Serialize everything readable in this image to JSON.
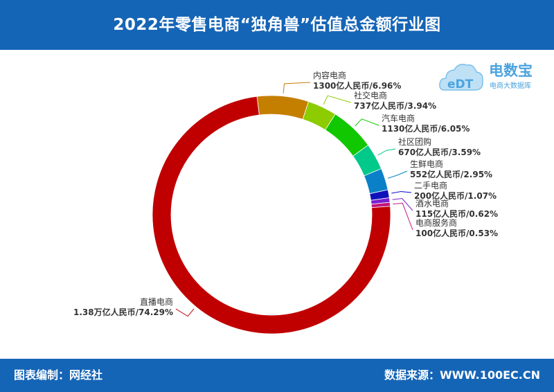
{
  "header": {
    "title": "2022年零售电商“独角兽”估值总金额行业图"
  },
  "logo": {
    "mark": "eDT",
    "name": "电数宝",
    "sub": "电商大数据库"
  },
  "footer": {
    "left": "图表编制：网经社",
    "right": "数据来源：WWW.100EC.CN"
  },
  "chart_data": {
    "type": "pie",
    "donut": true,
    "title": "2022年零售电商“独角兽”估值总金额行业图",
    "slices": [
      {
        "name": "内容电商",
        "value": 1300,
        "display": "1300亿人民币/6.96%",
        "percent": 6.96,
        "color": "#c47f00"
      },
      {
        "name": "社交电商",
        "value": 737,
        "display": "737亿人民币/3.94%",
        "percent": 3.94,
        "color": "#8ccc00"
      },
      {
        "name": "汽车电商",
        "value": 1130,
        "display": "1130亿人民币/6.05%",
        "percent": 6.05,
        "color": "#11c700"
      },
      {
        "name": "社区团购",
        "value": 670,
        "display": "670亿人民币/3.59%",
        "percent": 3.59,
        "color": "#00c98a"
      },
      {
        "name": "生鲜电商",
        "value": 552,
        "display": "552亿人民币/2.95%",
        "percent": 2.95,
        "color": "#0a80c8"
      },
      {
        "name": "二手电商",
        "value": 200,
        "display": "200亿人民币/1.07%",
        "percent": 1.07,
        "color": "#1010bb"
      },
      {
        "name": "酒水电商",
        "value": 115,
        "display": "115亿人民币/0.62%",
        "percent": 0.62,
        "color": "#7a1fcf"
      },
      {
        "name": "电商服务商",
        "value": 100,
        "display": "100亿人民币/0.53%",
        "percent": 0.53,
        "color": "#c4167c"
      },
      {
        "name": "直播电商",
        "value": 13800,
        "display": "1.38万亿人民币/74.29%",
        "percent": 74.29,
        "color": "#c00000"
      }
    ]
  }
}
